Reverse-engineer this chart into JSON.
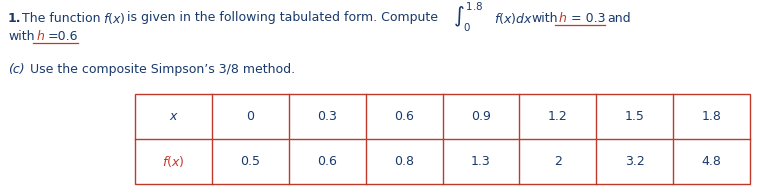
{
  "x_values": [
    "0",
    "0.3",
    "0.6",
    "0.9",
    "1.2",
    "1.5",
    "1.8"
  ],
  "fx_values": [
    "0.5",
    "0.6",
    "0.8",
    "1.3",
    "2",
    "3.2",
    "4.8"
  ],
  "table_border_color": "#c0392b",
  "text_color": "#1a3a6b",
  "red_color": "#c0392b",
  "background_color": "#ffffff",
  "fontsize_main": 9.0,
  "fontsize_table": 9.0
}
